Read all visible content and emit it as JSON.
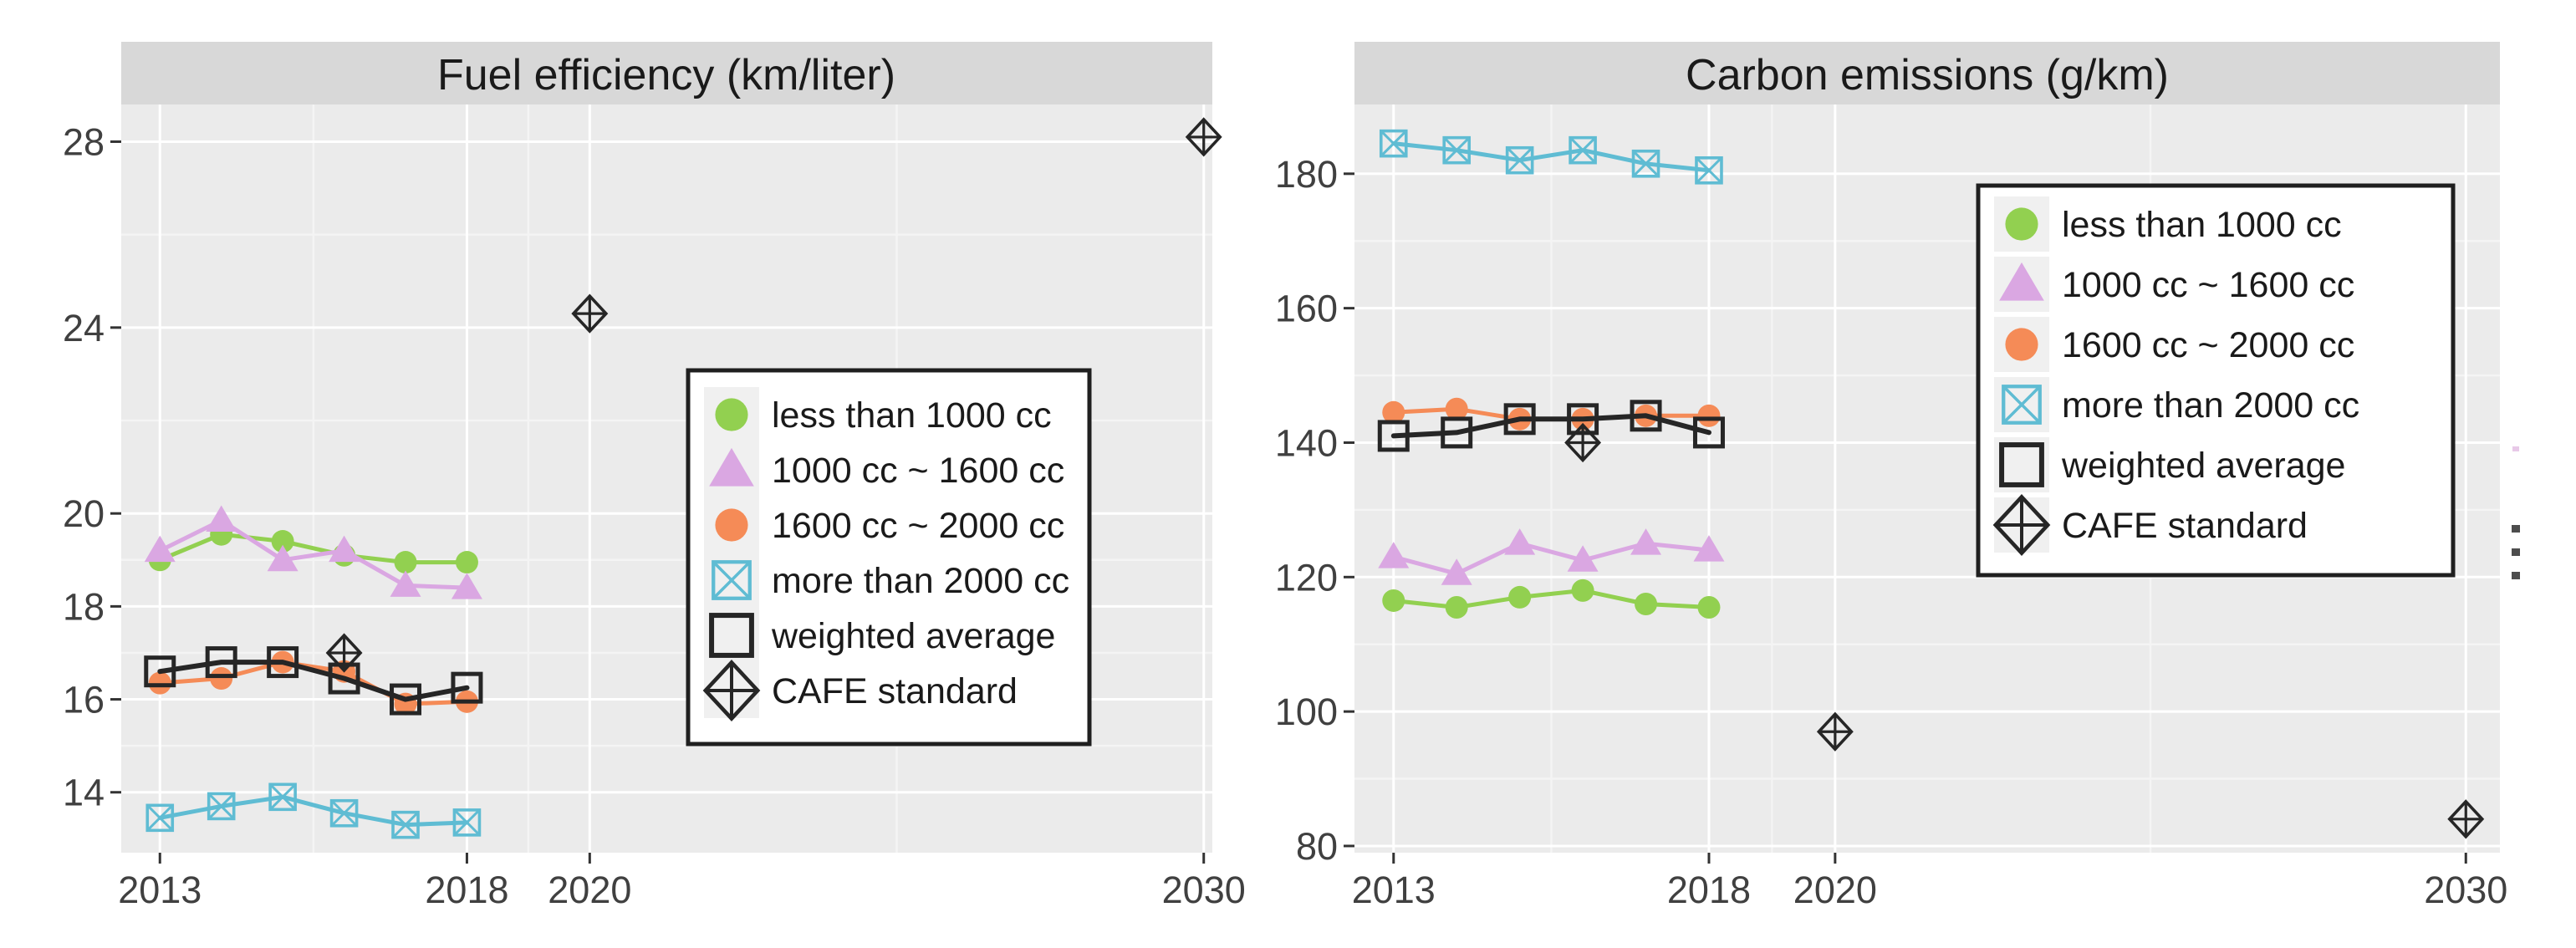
{
  "page": {
    "background": "#ffffff",
    "edge_artifact": "vertical-ellipsis-dots",
    "edge_artifact_dot_count": 3
  },
  "palette": {
    "green": "#92D050",
    "purple": "#DAA7E2",
    "orange": "#F58B57",
    "blue": "#5FBCD3",
    "black": "#262626",
    "panel_bg": "#EBEBEB",
    "strip_bg": "#D8D8D8",
    "grid_major": "#FFFFFF",
    "grid_minor": "#F4F4F4",
    "axis_text": "#404040",
    "tick_mark": "#333333",
    "legend_bg": "#FFFFFF",
    "legend_border": "#1F1F1F",
    "legend_key_bg": "#F0F0F0",
    "edge_dot": "#4D4D4D"
  },
  "legend": {
    "items": [
      {
        "key": "less_than_1000",
        "label": "less than 1000 cc",
        "marker": "circle",
        "color_ref": "green"
      },
      {
        "key": "1000_1600",
        "label": "1000 cc ~ 1600 cc",
        "marker": "triangle",
        "color_ref": "purple"
      },
      {
        "key": "1600_2000",
        "label": "1600 cc ~ 2000 cc",
        "marker": "circle",
        "color_ref": "orange"
      },
      {
        "key": "more_than_2000",
        "label": "more than 2000 cc",
        "marker": "box-x",
        "color_ref": "blue"
      },
      {
        "key": "weighted_average",
        "label": "weighted average",
        "marker": "square-open",
        "color_ref": "black"
      },
      {
        "key": "cafe_standard",
        "label": "CAFE standard",
        "marker": "diamond-plus",
        "color_ref": "black"
      }
    ]
  },
  "chart_data": [
    {
      "id": "fuel_efficiency",
      "type": "line",
      "title": "Fuel efficiency (km/liter)",
      "xlabel": "",
      "ylabel": "",
      "x": [
        2013,
        2014,
        2015,
        2016,
        2017,
        2018
      ],
      "series": [
        {
          "name": "less than 1000 cc",
          "key": "less_than_1000",
          "marker": "circle",
          "color_ref": "green",
          "values": [
            19.0,
            19.55,
            19.4,
            19.1,
            18.95,
            18.95
          ]
        },
        {
          "name": "1000 cc ~ 1600 cc",
          "key": "1000_1600",
          "marker": "triangle",
          "color_ref": "purple",
          "values": [
            19.2,
            19.85,
            19.0,
            19.2,
            18.45,
            18.4
          ]
        },
        {
          "name": "1600 cc ~ 2000 cc",
          "key": "1600_2000",
          "marker": "circle",
          "color_ref": "orange",
          "values": [
            16.35,
            16.45,
            16.8,
            16.6,
            15.9,
            15.95
          ]
        },
        {
          "name": "more than 2000 cc",
          "key": "more_than_2000",
          "marker": "box-x",
          "color_ref": "blue",
          "values": [
            13.45,
            13.7,
            13.9,
            13.55,
            13.3,
            13.35
          ]
        },
        {
          "name": "weighted average",
          "key": "weighted_average",
          "marker": "square-open",
          "color_ref": "black",
          "values": [
            16.6,
            16.8,
            16.8,
            16.45,
            16.0,
            16.25
          ]
        }
      ],
      "points": [
        {
          "name": "CAFE standard",
          "key": "cafe_standard",
          "marker": "diamond-plus",
          "color_ref": "black",
          "data": [
            [
              2016,
              17.0
            ],
            [
              2020,
              24.3
            ],
            [
              2030,
              28.1
            ]
          ]
        }
      ],
      "x_ticks": [
        2013,
        2018,
        2020,
        2030
      ],
      "y_ticks": [
        28,
        24,
        20,
        18,
        16,
        14
      ],
      "xlim": [
        2012.37,
        2030.14
      ],
      "ylim": [
        12.7,
        28.8
      ],
      "grid": "major+minor",
      "legend_position": "inside-right"
    },
    {
      "id": "carbon_emissions",
      "type": "line",
      "title": "Carbon emissions (g/km)",
      "xlabel": "",
      "ylabel": "",
      "x": [
        2013,
        2014,
        2015,
        2016,
        2017,
        2018
      ],
      "series": [
        {
          "name": "less than 1000 cc",
          "key": "less_than_1000",
          "marker": "circle",
          "color_ref": "green",
          "values": [
            116.5,
            115.5,
            117,
            118,
            116,
            115.5
          ]
        },
        {
          "name": "1000 cc ~ 1600 cc",
          "key": "1000_1600",
          "marker": "triangle",
          "color_ref": "purple",
          "values": [
            123,
            120.5,
            125,
            122.5,
            125,
            124
          ]
        },
        {
          "name": "1600 cc ~ 2000 cc",
          "key": "1600_2000",
          "marker": "circle",
          "color_ref": "orange",
          "values": [
            144.5,
            145,
            143.5,
            143.5,
            144,
            144
          ]
        },
        {
          "name": "more than 2000 cc",
          "key": "more_than_2000",
          "marker": "box-x",
          "color_ref": "blue",
          "values": [
            184.5,
            183.5,
            182,
            183.5,
            181.5,
            180.5
          ]
        },
        {
          "name": "weighted average",
          "key": "weighted_average",
          "marker": "square-open",
          "color_ref": "black",
          "values": [
            141,
            141.5,
            143.5,
            143.5,
            144,
            141.5
          ]
        }
      ],
      "points": [
        {
          "name": "CAFE standard",
          "key": "cafe_standard",
          "marker": "diamond-plus",
          "color_ref": "black",
          "data": [
            [
              2016,
              140
            ],
            [
              2020,
              97
            ],
            [
              2030,
              84
            ]
          ]
        }
      ],
      "x_ticks": [
        2013,
        2018,
        2020,
        2030
      ],
      "y_ticks": [
        180,
        160,
        140,
        120,
        100,
        80
      ],
      "xlim": [
        2012.38,
        2030.54
      ],
      "ylim": [
        79.0,
        190.3
      ],
      "grid": "major+minor",
      "legend_position": "inside-right"
    }
  ]
}
